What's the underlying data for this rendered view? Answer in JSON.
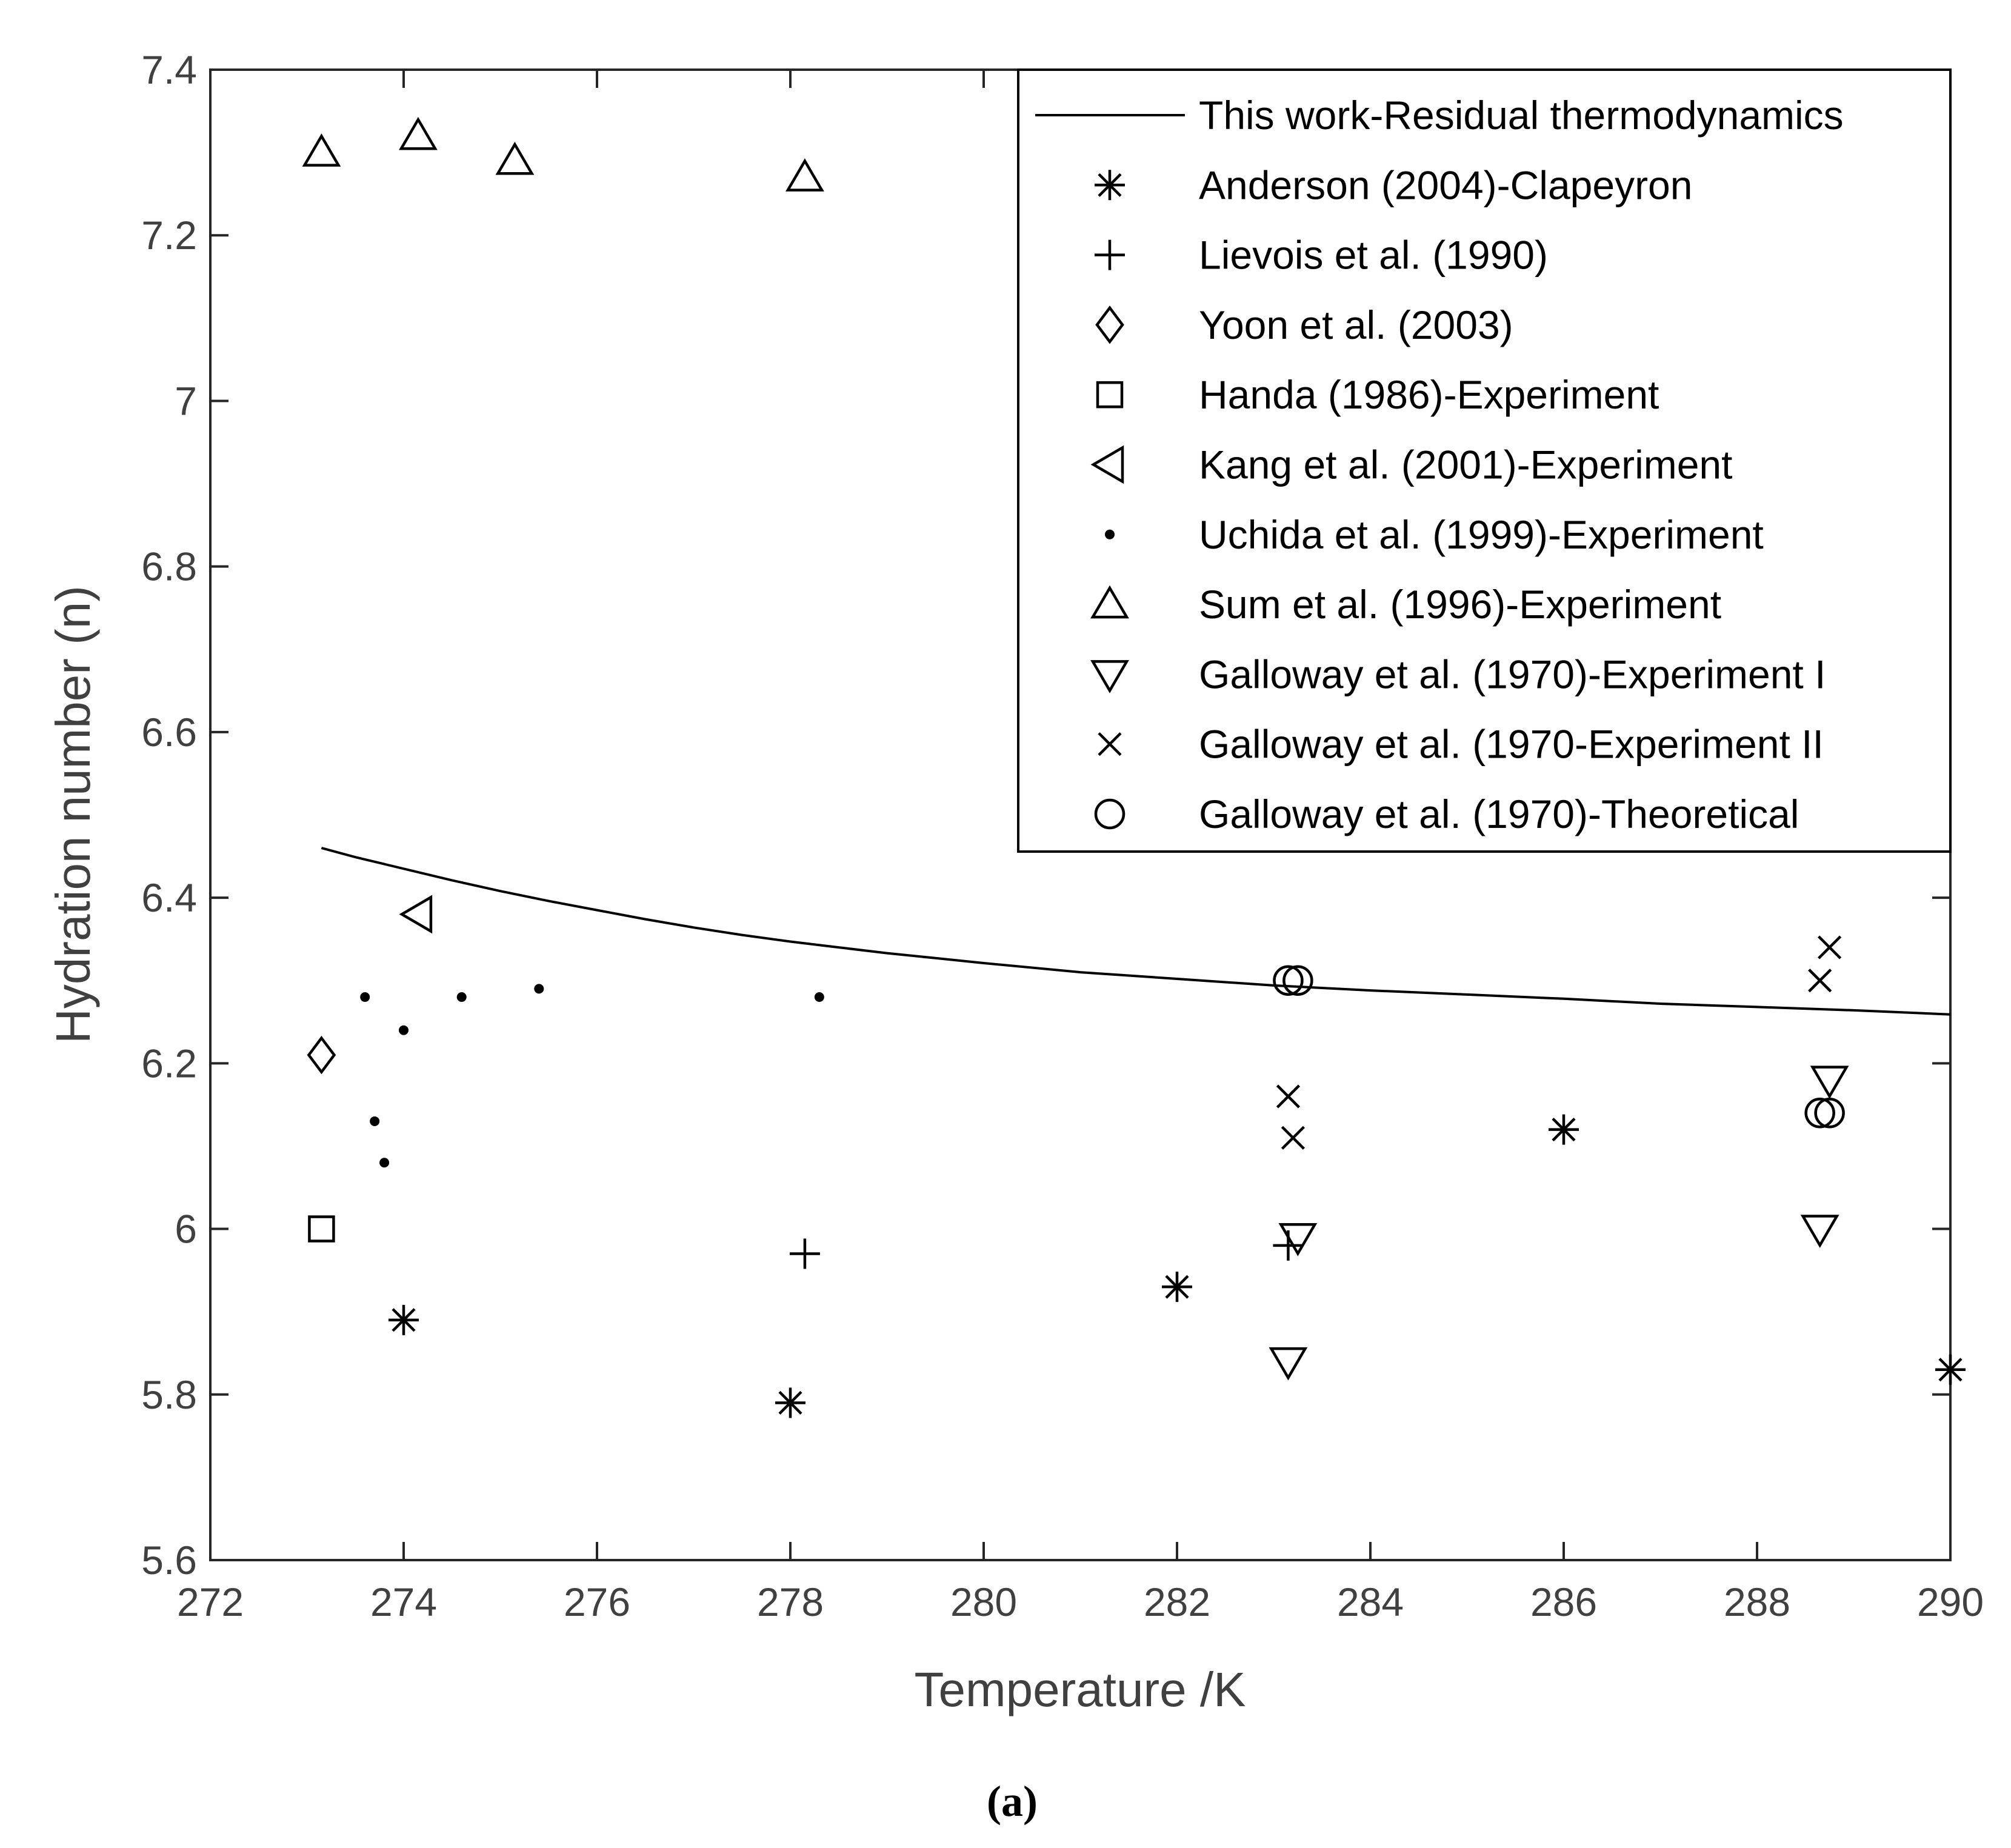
{
  "chart_data": {
    "type": "scatter",
    "title": "",
    "caption": "(a)",
    "xlabel": "Temperature /K",
    "ylabel": "Hydration number (n)",
    "xlim": [
      272,
      290
    ],
    "ylim": [
      5.6,
      7.4
    ],
    "xticks": [
      272,
      274,
      276,
      278,
      280,
      282,
      284,
      286,
      288,
      290
    ],
    "yticks": [
      5.6,
      5.8,
      6,
      6.2,
      6.4,
      6.6,
      6.8,
      7,
      7.2,
      7.4
    ],
    "xtick_labels": [
      "272",
      "274",
      "276",
      "278",
      "280",
      "282",
      "284",
      "286",
      "288",
      "290"
    ],
    "ytick_labels": [
      "5.6",
      "5.8",
      "6",
      "6.2",
      "6.4",
      "6.6",
      "6.8",
      "7",
      "7.2",
      "7.4"
    ],
    "grid": false,
    "legend_position": "top-right",
    "series": [
      {
        "name": "This work-Residual thermodynamics",
        "marker": "line",
        "x": [
          273.15,
          273.5,
          274,
          274.5,
          275,
          275.5,
          276,
          276.5,
          277,
          277.5,
          278,
          278.5,
          279,
          279.5,
          280,
          281,
          282,
          283,
          284,
          285,
          286,
          287,
          288,
          289,
          290
        ],
        "y": [
          6.46,
          6.449,
          6.435,
          6.421,
          6.408,
          6.396,
          6.385,
          6.374,
          6.364,
          6.355,
          6.347,
          6.34,
          6.333,
          6.327,
          6.321,
          6.31,
          6.302,
          6.294,
          6.288,
          6.283,
          6.278,
          6.272,
          6.268,
          6.264,
          6.259
        ]
      },
      {
        "name": "Anderson (2004)-Clapeyron",
        "marker": "asterisk",
        "x": [
          274,
          278,
          282,
          286,
          290
        ],
        "y": [
          5.89,
          5.79,
          5.93,
          6.12,
          5.83
        ]
      },
      {
        "name": "Lievois et al. (1990)",
        "marker": "plus",
        "x": [
          278.15,
          283.15
        ],
        "y": [
          5.97,
          5.98
        ]
      },
      {
        "name": "Yoon et al. (2003)",
        "marker": "diamond",
        "x": [
          273.15
        ],
        "y": [
          6.21
        ]
      },
      {
        "name": "Handa (1986)-Experiment",
        "marker": "square",
        "x": [
          273.15
        ],
        "y": [
          6.0
        ]
      },
      {
        "name": "Kang et al. (2001)-Experiment",
        "marker": "triangle-left",
        "x": [
          274.15
        ],
        "y": [
          6.38
        ]
      },
      {
        "name": "Uchida et al. (1999)-Experiment",
        "marker": "dot",
        "x": [
          273.6,
          273.7,
          273.8,
          274.0,
          274.6,
          275.4,
          278.3
        ],
        "y": [
          6.28,
          6.13,
          6.08,
          6.24,
          6.28,
          6.29,
          6.28
        ]
      },
      {
        "name": "Sum et al. (1996)-Experiment",
        "marker": "triangle-up",
        "x": [
          273.15,
          274.15,
          275.15,
          278.15
        ],
        "y": [
          7.3,
          7.32,
          7.29,
          7.27
        ]
      },
      {
        "name": "Galloway et al. (1970)-Experiment I",
        "marker": "triangle-down",
        "x": [
          283.15,
          283.25,
          288.65,
          288.75
        ],
        "y": [
          5.84,
          5.99,
          6.0,
          6.18
        ]
      },
      {
        "name": "Galloway et al. (1970-Experiment II",
        "marker": "x",
        "x": [
          283.15,
          283.2,
          288.65,
          288.75
        ],
        "y": [
          6.16,
          6.11,
          6.3,
          6.34
        ]
      },
      {
        "name": "Galloway et al. (1970)-Theoretical",
        "marker": "circle",
        "x": [
          283.15,
          283.25,
          288.65,
          288.75
        ],
        "y": [
          6.3,
          6.3,
          6.14,
          6.14
        ]
      }
    ]
  }
}
